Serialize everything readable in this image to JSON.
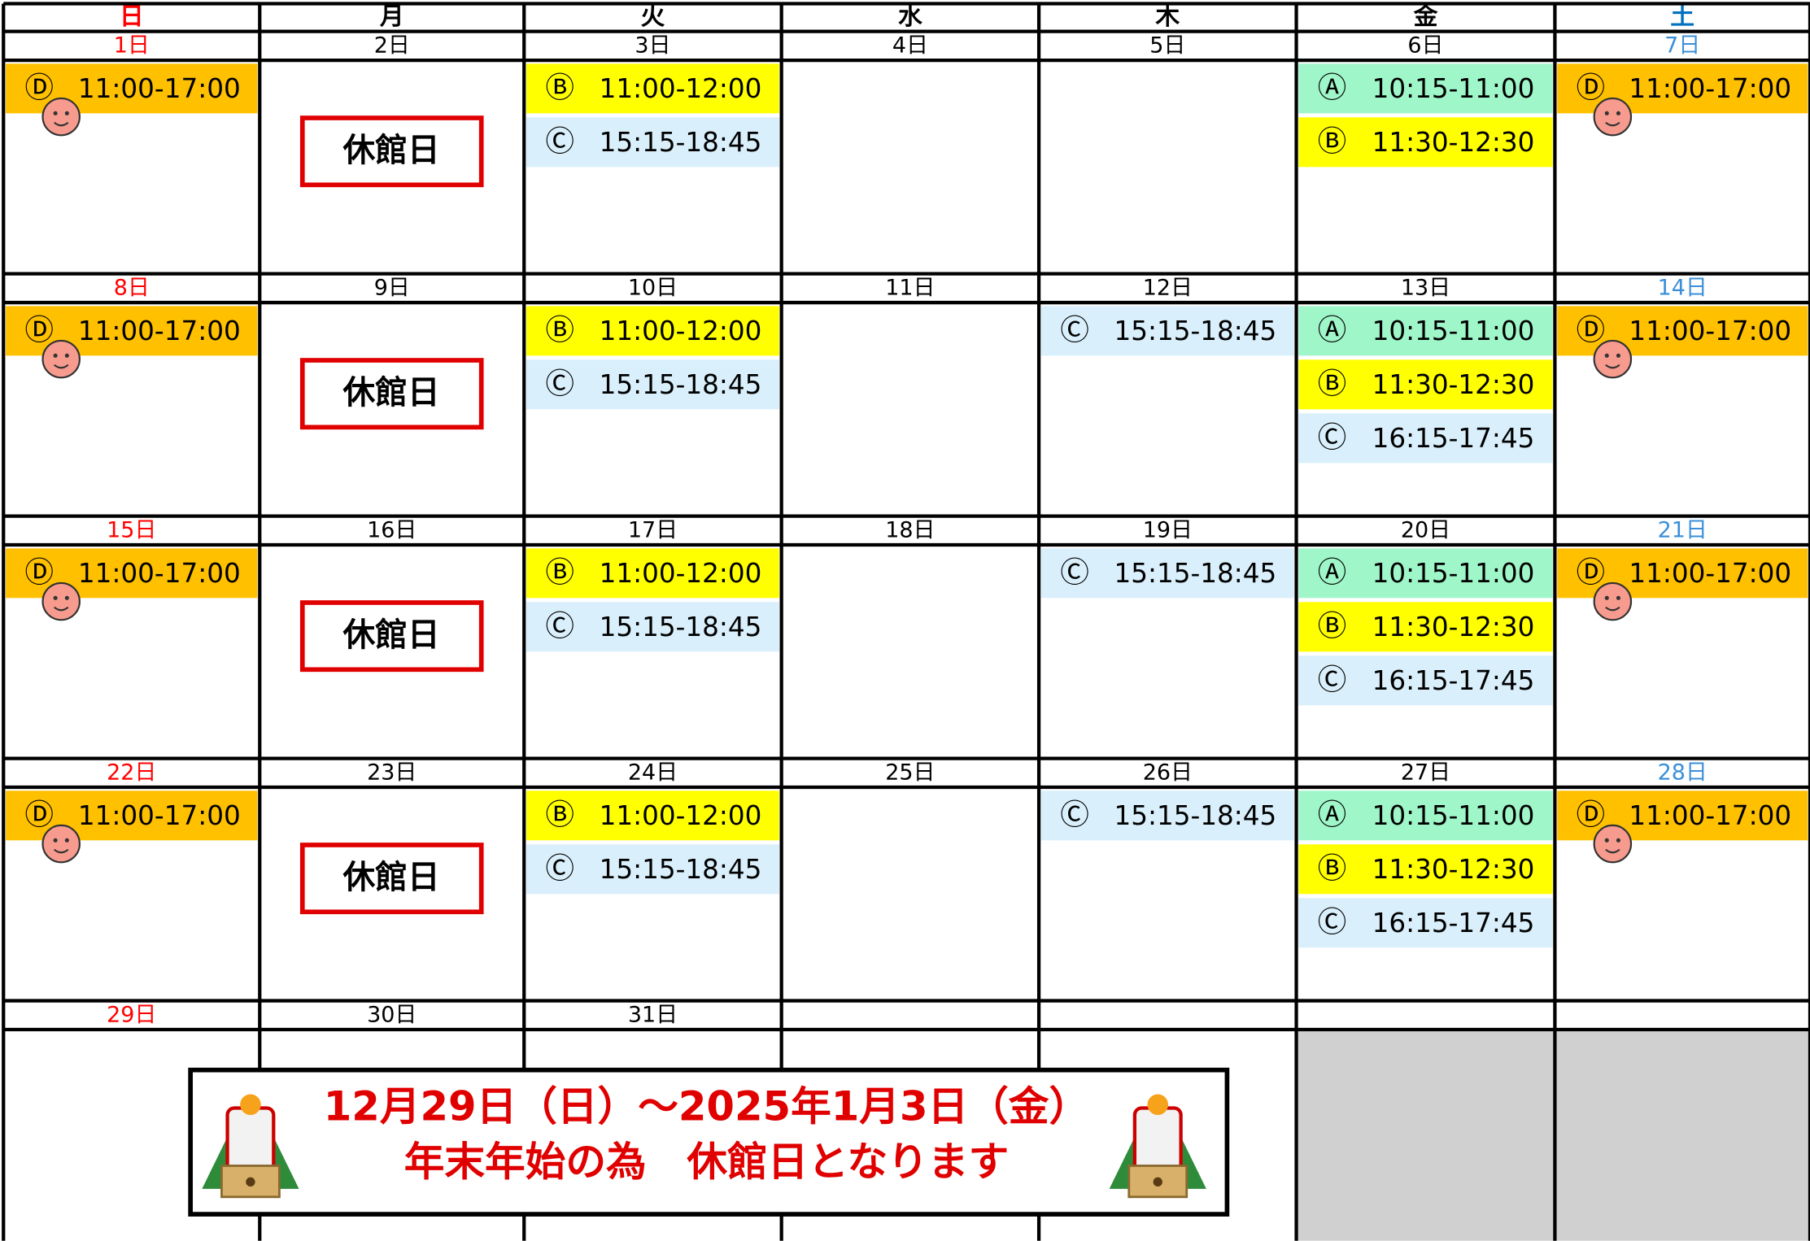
{
  "weekdays": [
    "日",
    "月",
    "火",
    "水",
    "木",
    "金",
    "土"
  ],
  "weeks": [
    {
      "days": [
        {
          "date": "1日",
          "events": [
            {
              "mark": "Ⓓ",
              "time": "11:00-17:00",
              "color": "#ffc000"
            }
          ]
        },
        {
          "date": "2日",
          "note": "休館日"
        },
        {
          "date": "3日",
          "events": [
            {
              "mark": "Ⓑ",
              "time": "11:00-12:00",
              "color": "#ffff00"
            },
            {
              "mark": "Ⓒ",
              "time": "15:15-18:45",
              "color": "#d9effb"
            }
          ]
        },
        {
          "date": "4日"
        },
        {
          "date": "5日"
        },
        {
          "date": "6日",
          "events": [
            {
              "mark": "Ⓐ",
              "time": "10:15-11:00",
              "color": "#9ff6c9"
            },
            {
              "mark": "Ⓑ",
              "time": "11:30-12:30",
              "color": "#ffff00"
            }
          ]
        },
        {
          "date": "7日",
          "events": [
            {
              "mark": "Ⓓ",
              "time": "11:00-17:00",
              "color": "#ffc000"
            }
          ]
        }
      ]
    },
    {
      "days": [
        {
          "date": "8日",
          "events": [
            {
              "mark": "Ⓓ",
              "time": "11:00-17:00",
              "color": "#ffc000"
            }
          ]
        },
        {
          "date": "9日",
          "note": "休館日"
        },
        {
          "date": "10日",
          "events": [
            {
              "mark": "Ⓑ",
              "time": "11:00-12:00",
              "color": "#ffff00"
            },
            {
              "mark": "Ⓒ",
              "time": "15:15-18:45",
              "color": "#d9effb"
            }
          ]
        },
        {
          "date": "11日"
        },
        {
          "date": "12日",
          "events": [
            {
              "mark": "Ⓒ",
              "time": "15:15-18:45",
              "color": "#d9effb"
            }
          ]
        },
        {
          "date": "13日",
          "events": [
            {
              "mark": "Ⓐ",
              "time": "10:15-11:00",
              "color": "#9ff6c9"
            },
            {
              "mark": "Ⓑ",
              "time": "11:30-12:30",
              "color": "#ffff00"
            },
            {
              "mark": "Ⓒ",
              "time": "16:15-17:45",
              "color": "#d9effb"
            }
          ]
        },
        {
          "date": "14日",
          "events": [
            {
              "mark": "Ⓓ",
              "time": "11:00-17:00",
              "color": "#ffc000"
            }
          ]
        }
      ]
    },
    {
      "days": [
        {
          "date": "15日",
          "events": [
            {
              "mark": "Ⓓ",
              "time": "11:00-17:00",
              "color": "#ffc000"
            }
          ]
        },
        {
          "date": "16日",
          "note": "休館日"
        },
        {
          "date": "17日",
          "events": [
            {
              "mark": "Ⓑ",
              "time": "11:00-12:00",
              "color": "#ffff00"
            },
            {
              "mark": "Ⓒ",
              "time": "15:15-18:45",
              "color": "#d9effb"
            }
          ]
        },
        {
          "date": "18日"
        },
        {
          "date": "19日",
          "events": [
            {
              "mark": "Ⓒ",
              "time": "15:15-18:45",
              "color": "#d9effb"
            }
          ]
        },
        {
          "date": "20日",
          "events": [
            {
              "mark": "Ⓐ",
              "time": "10:15-11:00",
              "color": "#9ff6c9"
            },
            {
              "mark": "Ⓑ",
              "time": "11:30-12:30",
              "color": "#ffff00"
            },
            {
              "mark": "Ⓒ",
              "time": "16:15-17:45",
              "color": "#d9effb"
            }
          ]
        },
        {
          "date": "21日",
          "events": [
            {
              "mark": "Ⓓ",
              "time": "11:00-17:00",
              "color": "#ffc000"
            }
          ]
        }
      ]
    },
    {
      "days": [
        {
          "date": "22日",
          "events": [
            {
              "mark": "Ⓓ",
              "time": "11:00-17:00",
              "color": "#ffc000"
            }
          ]
        },
        {
          "date": "23日",
          "note": "休館日"
        },
        {
          "date": "24日",
          "events": [
            {
              "mark": "Ⓑ",
              "time": "11:00-12:00",
              "color": "#ffff00"
            },
            {
              "mark": "Ⓒ",
              "time": "15:15-18:45",
              "color": "#d9effb"
            }
          ]
        },
        {
          "date": "25日"
        },
        {
          "date": "26日",
          "events": [
            {
              "mark": "Ⓒ",
              "time": "15:15-18:45",
              "color": "#d9effb"
            }
          ]
        },
        {
          "date": "27日",
          "events": [
            {
              "mark": "Ⓐ",
              "time": "10:15-11:00",
              "color": "#9ff6c9"
            },
            {
              "mark": "Ⓑ",
              "time": "11:30-12:30",
              "color": "#ffff00"
            },
            {
              "mark": "Ⓒ",
              "time": "16:15-17:45",
              "color": "#d9effb"
            }
          ]
        },
        {
          "date": "28日",
          "events": [
            {
              "mark": "Ⓓ",
              "time": "11:00-17:00",
              "color": "#ffc000"
            }
          ]
        }
      ]
    },
    {
      "days": [
        {
          "date": "29日"
        },
        {
          "date": "30日"
        },
        {
          "date": "31日"
        }
      ]
    }
  ],
  "banner": {
    "lines": [
      "12月29日（日）～2025年1月3日（金）",
      "年末年始の為　休館日となります"
    ]
  }
}
